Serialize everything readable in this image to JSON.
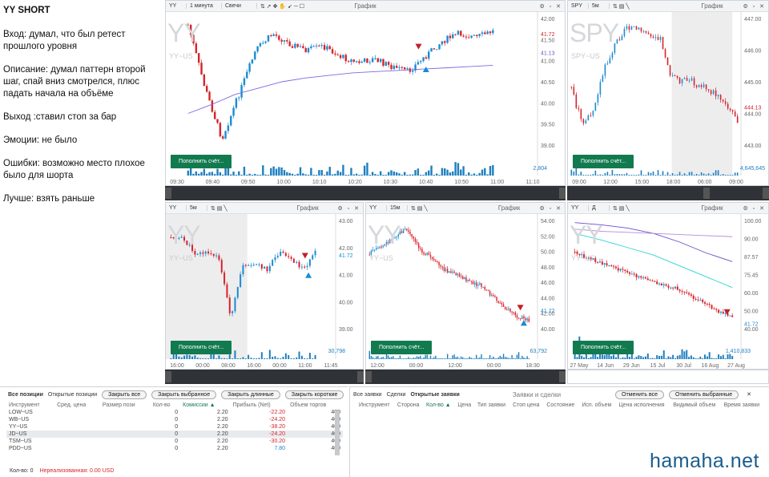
{
  "notes": {
    "title": "YY SHORT",
    "lines": [
      "Вход: думал, что был ретест прошлого уровня",
      "Описание: думал паттерн второй шаг, спай вниз смотрелся, плюс падать начала на объёме",
      "Выход :ставил стоп за бар",
      "Эмоции: не было",
      "Ошибки: возможно место плохое было для шорта",
      "Лучше: взять раньше"
    ]
  },
  "panels": {
    "main": {
      "symbol": "YY",
      "interval": "1 минута",
      "chart_type": "Свечи",
      "title": "График",
      "watermark": "YY",
      "sub": "YY~US",
      "yticks": [
        "42.00",
        "41.50",
        "41.00",
        "40.50",
        "40.00",
        "39.50",
        "39.00"
      ],
      "price_tag": "41.72",
      "ma_tag": "41.13",
      "xticks": [
        "09:30",
        "09:40",
        "09:50",
        "10:00",
        "10:10",
        "10:20",
        "10:30",
        "10:40",
        "10:50",
        "11:00",
        "11:10"
      ],
      "volume": "2,804",
      "fund": "Пополнить счёт..."
    },
    "spy": {
      "symbol": "SPY",
      "interval": "5м",
      "title": "График",
      "watermark": "SPY",
      "sub": "SPY~US",
      "yticks": [
        "447.00",
        "446.00",
        "445.00",
        "444.00",
        "443.00"
      ],
      "price_tag": "444.13",
      "xticks": [
        "09:00",
        "12:00",
        "15:00",
        "18:00",
        "06:00",
        "09:00"
      ],
      "volume": "4,645,645",
      "fund": "Пополнить счёт..."
    },
    "yy5": {
      "symbol": "YY",
      "interval": "5м",
      "title": "График",
      "watermark": "YY",
      "sub": "YY~US",
      "yticks": [
        "43.00",
        "42.00",
        "41.00",
        "40.00",
        "39.00"
      ],
      "price_tag": "41.72",
      "xticks": [
        "16:00",
        "00:00",
        "08:00",
        "16:00",
        "00:00",
        "11:00",
        "11:45"
      ],
      "volume": "30,798",
      "fund": "Пополнить счёт..."
    },
    "yy15": {
      "symbol": "YY",
      "interval": "15м",
      "title": "График",
      "watermark": "YY",
      "sub": "YY~US",
      "yticks": [
        "54.00",
        "52.00",
        "50.00",
        "48.00",
        "46.00",
        "44.00",
        "42.00",
        "40.00"
      ],
      "price_tag": "41.72",
      "xticks": [
        "12:00",
        "00:00",
        "12:00",
        "00:00",
        "18:30"
      ],
      "volume": "63,792",
      "fund": "Пополнить счёт..."
    },
    "yyd": {
      "symbol": "YY",
      "interval": "Д",
      "title": "График",
      "watermark": "YY",
      "sub": "YY~US",
      "yticks": [
        "100.00",
        "90.00",
        "87.57",
        "75.45",
        "60.00",
        "50.00",
        "40.00"
      ],
      "price_tag": "41.72",
      "xticks": [
        "27 May",
        "14 Jun",
        "29 Jun",
        "15 Jul",
        "30 Jul",
        "16 Aug",
        "27 Aug"
      ],
      "volume": "1,410,833",
      "fund": "Пополнить счёт..."
    }
  },
  "positions": {
    "tabs": [
      "Все позиции",
      "Открытые позиции"
    ],
    "buttons": [
      "Закрыть все",
      "Закрыть выбранное",
      "Закрыть длинные",
      "Закрыть короткие"
    ],
    "headers": [
      "Инструмент",
      "Сред. цена",
      "Размер пози",
      "Кол-во",
      "Комиссии ▲",
      "Прибыль (Net)",
      "Объем торгов"
    ],
    "rows": [
      {
        "inst": "LOW~US",
        "qty": "0",
        "fee": "2.20",
        "pnl": "-22.20",
        "vol": "400"
      },
      {
        "inst": "WB~US",
        "qty": "0",
        "fee": "2.20",
        "pnl": "-24.20",
        "vol": "400"
      },
      {
        "inst": "YY~US",
        "qty": "0",
        "fee": "2.20",
        "pnl": "-38.20",
        "vol": "400"
      },
      {
        "inst": "JD~US",
        "qty": "0",
        "fee": "2.20",
        "pnl": "-24.20",
        "vol": "400"
      },
      {
        "inst": "TSM~US",
        "qty": "0",
        "fee": "2.20",
        "pnl": "-30.20",
        "vol": "400"
      },
      {
        "inst": "PDD~US",
        "qty": "0",
        "fee": "2.20",
        "pnl": "7.80",
        "vol": "400"
      }
    ],
    "footer_qty": "Кол-во: 0",
    "footer_unreal": "Нереализованная: 0.00 USD"
  },
  "orders": {
    "tabs": [
      "Все заявки",
      "Сделки",
      "Открытые заявки"
    ],
    "title": "Заявки и сделки",
    "buttons": [
      "Отменить все",
      "Отменить выбранные"
    ],
    "headers": [
      "Инструмент",
      "Сторона",
      "Кол-во ▲",
      "Цена",
      "Тип заявки",
      "Стоп цена",
      "Состояние",
      "Исп. объем",
      "Цена исполнения",
      "Видимый объем",
      "Время заявки"
    ]
  },
  "watermark": "hamaha.net"
}
